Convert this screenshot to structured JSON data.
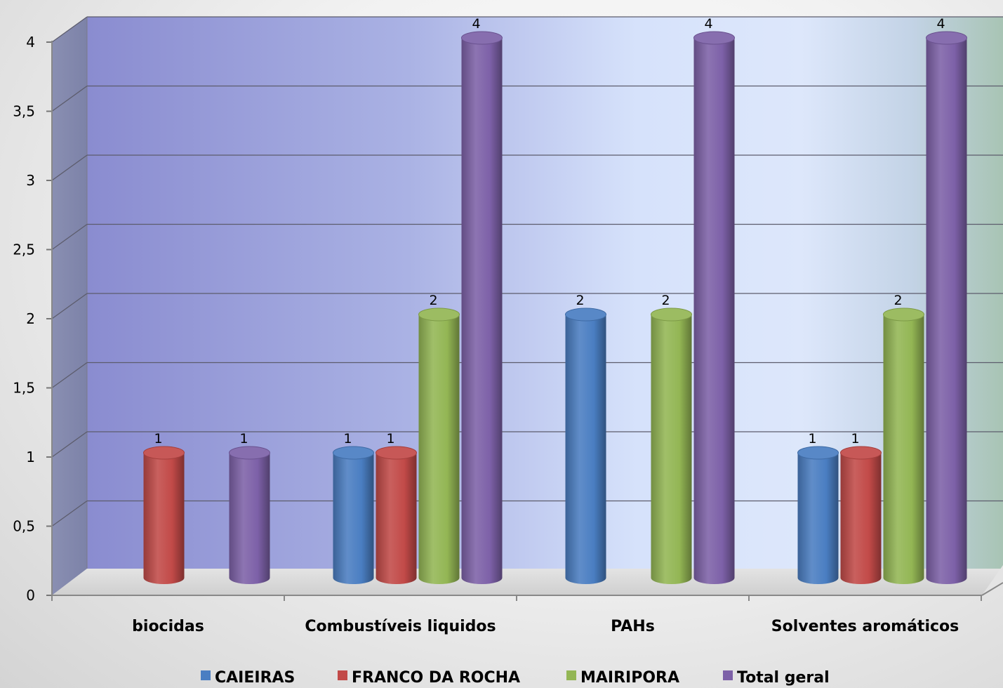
{
  "chart_data": {
    "type": "bar",
    "title": "",
    "xlabel": "",
    "ylabel": "",
    "ylim": [
      0,
      4
    ],
    "y_ticks": [
      "0",
      "0,5",
      "1",
      "1,5",
      "2",
      "2,5",
      "3",
      "3,5",
      "4"
    ],
    "categories": [
      "biocidas",
      "Combustíveis liquidos",
      "PAHs",
      "Solventes aromáticos"
    ],
    "series": [
      {
        "name": "CAIEIRAS",
        "color": "#4a7ec2",
        "values": [
          null,
          1,
          2,
          1
        ]
      },
      {
        "name": "FRANCO DA ROCHA",
        "color": "#c24a48",
        "values": [
          1,
          1,
          null,
          1
        ]
      },
      {
        "name": "MAIRIPORA",
        "color": "#93b654",
        "values": [
          null,
          2,
          2,
          2
        ]
      },
      {
        "name": "Total geral",
        "color": "#7d61a8",
        "values": [
          1,
          4,
          4,
          4
        ]
      }
    ],
    "grid": true,
    "legend_position": "bottom",
    "style": "3d-cylinder"
  }
}
